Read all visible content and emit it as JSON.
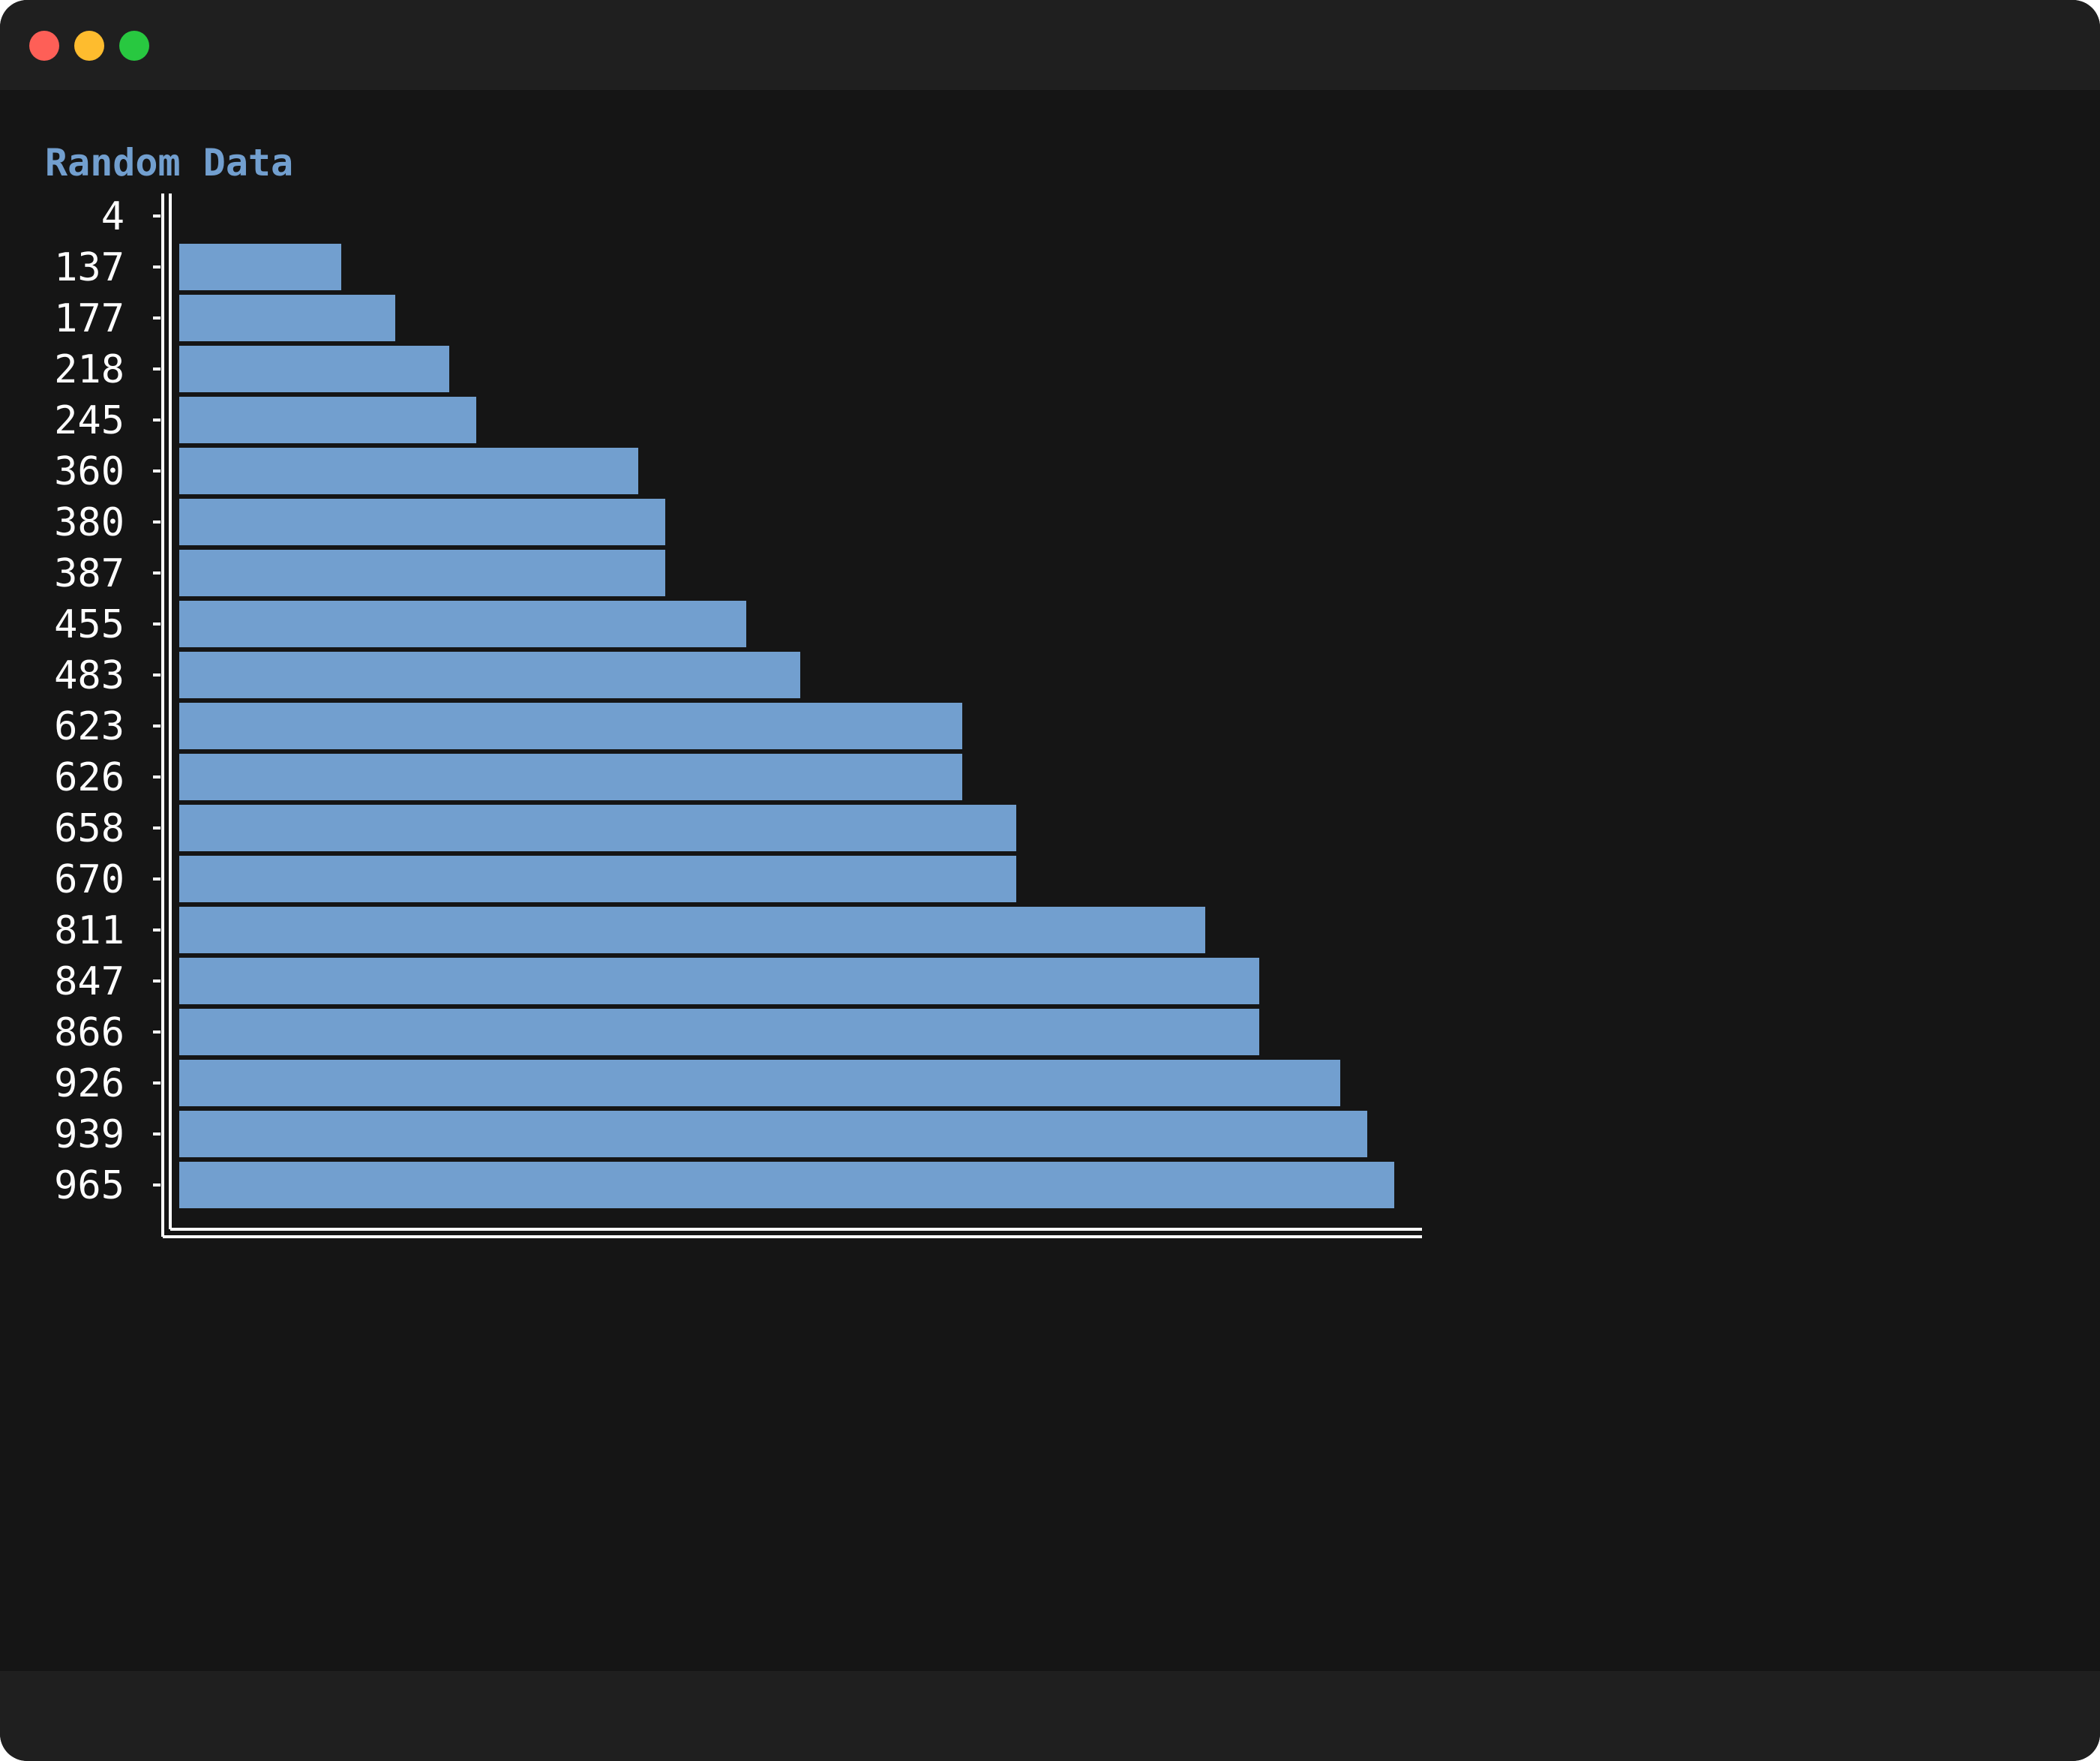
{
  "window": {
    "controls": [
      "close-button",
      "minimize-button",
      "zoom-button"
    ]
  },
  "chart_data": {
    "type": "bar",
    "orientation": "horizontal",
    "title": "Random Data",
    "categories": [
      "4",
      "137",
      "177",
      "218",
      "245",
      "360",
      "380",
      "387",
      "455",
      "483",
      "623",
      "626",
      "658",
      "670",
      "811",
      "847",
      "866",
      "926",
      "939",
      "965"
    ],
    "values": [
      4,
      137,
      177,
      218,
      245,
      360,
      380,
      387,
      455,
      483,
      623,
      626,
      658,
      670,
      811,
      847,
      866,
      926,
      939,
      965
    ],
    "xlim": [
      0,
      965
    ],
    "bar_color": "#729fcf",
    "axis_color": "#ffffff",
    "grid": false,
    "legend": false
  }
}
